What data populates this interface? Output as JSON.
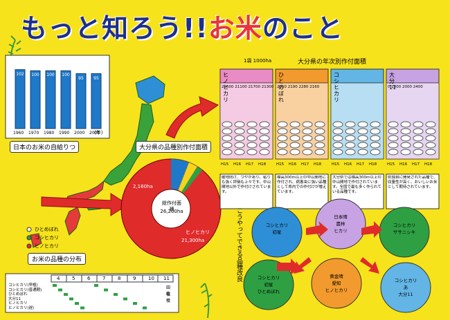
{
  "title": {
    "part1": "もっと知ろう!!",
    "part2": "お米",
    "part3": "のこと"
  },
  "self_sufficiency": {
    "caption": "日本のお米の自給りつ",
    "years": [
      "1960",
      "1970",
      "1980",
      "1990",
      "2000",
      "2005"
    ],
    "year_unit": "(年)",
    "values": [
      "102",
      "100",
      "100",
      "100",
      "95",
      "95"
    ]
  },
  "distribution": {
    "caption": "お米の品種の分布",
    "legend": [
      "ひとめぼれ",
      "コシヒカリ",
      "ヒノヒカリ"
    ]
  },
  "pie": {
    "caption": "大分県の品種別作付面積",
    "total_label": "総作付面積",
    "total_value": "26,200ha",
    "main_label": "ヒノヒカリ",
    "main_value": "21,300ha",
    "small_value": "2,160ha"
  },
  "yearly": {
    "caption": "大分県の年次別作付面積",
    "legend_label": "1袋 1000ha",
    "columns": [
      {
        "name": "ヒノヒカリ",
        "values": "20600 21100 21700 21300",
        "note": "暖地向け、つやがあり、粘りも強く評価も上々です。中山間地以外で作付けされています。",
        "color": "#e98bc4"
      },
      {
        "name": "ひとめぼれ",
        "values": "2050 2190 2280 2160",
        "note": "標高300m以上の中山間地に作付され、病害虫に強い品種として県内での作付けが増えています。",
        "color": "#f29a2e"
      },
      {
        "name": "コシヒカリ",
        "values": "",
        "note": "大分県では標高300m以上の中山間地で作付されています。全国で最も多く作られている品種です。",
        "color": "#62b5e5"
      },
      {
        "name": "大分11",
        "values": "0 1800 2000 2400",
        "note": "県独自に開発された品種で、収量性が高く、おいしいお米として期待されています。",
        "color": "#c7a3e3"
      }
    ],
    "years": [
      "H15",
      "H16",
      "H17",
      "H18"
    ]
  },
  "breeding": {
    "caption": "こうやってできる品種改良",
    "circles": [
      {
        "lines": [
          "コシヒカリ",
          "初星"
        ]
      },
      {
        "lines": [
          "日本晴",
          "農林",
          "ヒカリ"
        ]
      },
      {
        "lines": [
          "コシヒカリ",
          "ササニシキ"
        ]
      },
      {
        "lines": [
          "コシヒカリ",
          "初星",
          "ひとめぼれ"
        ]
      },
      {
        "lines": [
          "黄金晴",
          "愛知",
          "ヒノヒカリ"
        ]
      },
      {
        "lines": [
          "コシヒカリ",
          "あ",
          "大分11"
        ]
      }
    ]
  },
  "calendar": {
    "months": [
      "4",
      "5",
      "6",
      "7",
      "8",
      "9",
      "10",
      "11"
    ],
    "rows": [
      "コシヒカリ(早植)",
      "コシヒカリ(普通期)",
      "ひとめぼれ",
      "大分11",
      "ヒノヒカリ",
      "ヒノヒカリ(遅)"
    ],
    "legend": [
      "田植",
      "収穫"
    ]
  },
  "colors": {
    "background": "#f7e31b",
    "title_blue": "#1d2f8c",
    "title_red": "#e8343a",
    "pie_red": "#e02b2b",
    "bar_blue": "#1f78c8",
    "japan_green": "#2ea043"
  }
}
